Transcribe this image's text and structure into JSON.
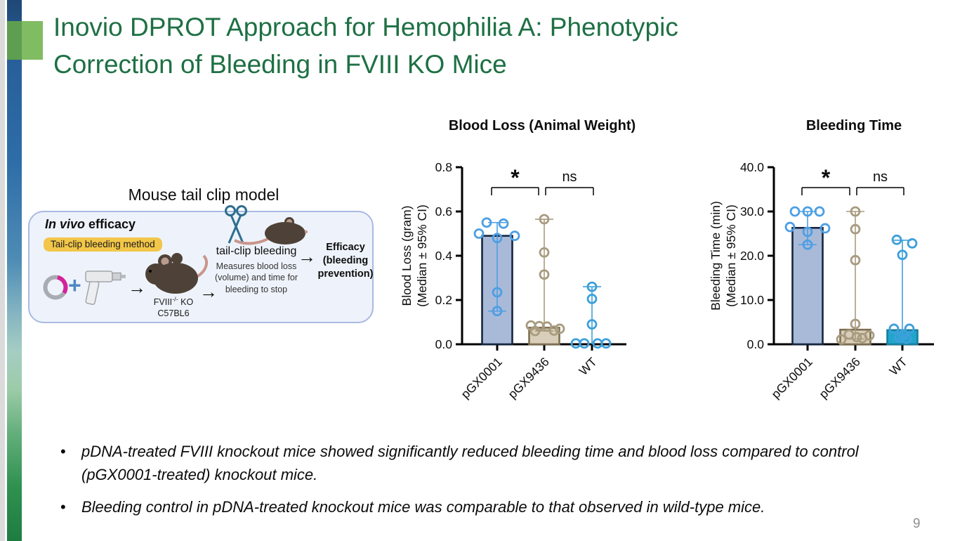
{
  "slide": {
    "title_line1": "Inovio DPROT Approach for Hemophilia A: Phenotypic",
    "title_line2": "Correction of Bleeding in FVIII KO Mice",
    "page_number": "9"
  },
  "colors": {
    "title_green": "#1E7044",
    "tag_yellow": "#F2C649",
    "box_border": "#A9B9E2",
    "box_bg": "#EEF3FB",
    "accent_blue": "#4D9FE3",
    "accent_tan": "#A89B7F",
    "accent_teal": "#21A5CB",
    "bar_blue_fill": "#A9BAD8",
    "bar_tan_fill": "#D9CEB9",
    "bar_teal_fill": "#21A5CB"
  },
  "icons": {
    "arrow": "→",
    "plus": "+"
  },
  "diagram": {
    "heading": "Mouse tail clip model",
    "invivo_italic": "In vivo",
    "invivo_rest": " efficacy",
    "method_tag": "Tail-clip bleeding method",
    "mouse_line1_base": "FVIII",
    "mouse_line1_sup": "-/-",
    "mouse_line1_suffix": " KO",
    "mouse_line2": "C57BL6",
    "tailclip_title": "tail-clip bleeding",
    "tailclip_desc": "Measures blood loss (volume) and time for bleeding to stop",
    "efficacy_line1": "Efficacy",
    "efficacy_line2": "(bleeding",
    "efficacy_line3": "prevention)"
  },
  "bullets": [
    {
      "text": "pDNA-treated FVIII knockout mice showed significantly reduced bleeding time and blood loss compared to control (pGX0001-treated) knockout mice."
    },
    {
      "text": "Bleeding control in pDNA-treated knockout mice was comparable to that observed in wild-type mice."
    }
  ],
  "chart_data": [
    {
      "type": "bar",
      "title": "Blood Loss (Animal Weight)",
      "ylabel": [
        "Blood Loss (gram)",
        "(Median ± 95% CI)"
      ],
      "ylim": [
        0,
        0.8
      ],
      "yticks": [
        "0.0",
        "0.2",
        "0.4",
        "0.6",
        "0.8"
      ],
      "categories": [
        "pGX0001",
        "pGX9436",
        "WT"
      ],
      "groups": [
        {
          "name": "pGX0001",
          "median": 0.49,
          "ci_low": 0.15,
          "ci_high": 0.55,
          "bar_fill": "#A9BAD8",
          "bar_stroke": "#16263F",
          "accent": "#4D9FE3",
          "points": [
            [
              -15,
              0.55
            ],
            [
              9,
              0.545
            ],
            [
              -26,
              0.5
            ],
            [
              25,
              0.49
            ],
            [
              0,
              0.48
            ],
            [
              0,
              0.235
            ],
            [
              0,
              0.15
            ]
          ]
        },
        {
          "name": "pGX9436",
          "median": 0.075,
          "ci_low": 0.06,
          "ci_high": 0.565,
          "bar_fill": "#D9CEB9",
          "bar_stroke": "#7D6F51",
          "accent": "#A89B7F",
          "points": [
            [
              0,
              0.565
            ],
            [
              0,
              0.415
            ],
            [
              0,
              0.315
            ],
            [
              -19,
              0.085
            ],
            [
              -7,
              0.082
            ],
            [
              4,
              0.08
            ],
            [
              14,
              0.062
            ],
            [
              -13,
              0.06
            ],
            [
              22,
              0.07
            ]
          ]
        },
        {
          "name": "WT",
          "median": 0.004,
          "ci_low": 0,
          "ci_high": 0.26,
          "bar_fill": "#21A5CB",
          "bar_stroke": "#177F9E",
          "accent": "#3DA0DB",
          "points": [
            [
              0,
              0.26
            ],
            [
              0,
              0.205
            ],
            [
              0,
              0.09
            ],
            [
              -23,
              0.004
            ],
            [
              -11,
              0.004
            ],
            [
              8,
              0.004
            ],
            [
              20,
              0.004
            ]
          ]
        }
      ],
      "annotations": [
        {
          "label": "*",
          "from": 0,
          "to": 1
        },
        {
          "label": "ns",
          "from": 1,
          "to": 2
        }
      ]
    },
    {
      "type": "bar",
      "title": "Bleeding Time",
      "ylabel": [
        "Bleeding Time (min)",
        "(Median ± 95% CI)"
      ],
      "ylim": [
        0,
        40
      ],
      "yticks": [
        "0.0",
        "10.0",
        "20.0",
        "30.0",
        "40.0"
      ],
      "categories": [
        "pGX0001",
        "pGX9436",
        "WT"
      ],
      "groups": [
        {
          "name": "pGX0001",
          "median": 26.3,
          "ci_low": 22.5,
          "ci_high": 30,
          "bar_fill": "#A9BAD8",
          "bar_stroke": "#16263F",
          "accent": "#4D9FE3",
          "points": [
            [
              -18,
              30
            ],
            [
              0,
              30
            ],
            [
              17,
              30
            ],
            [
              -25,
              26.5
            ],
            [
              25,
              26.2
            ],
            [
              0,
              25.4
            ],
            [
              0,
              22.5
            ]
          ]
        },
        {
          "name": "pGX9436",
          "median": 3.3,
          "ci_low": 1.2,
          "ci_high": 30,
          "bar_fill": "#D9CEB9",
          "bar_stroke": "#7D6F51",
          "accent": "#A89B7F",
          "points": [
            [
              0,
              30
            ],
            [
              0,
              26
            ],
            [
              0,
              19
            ],
            [
              0,
              4.6
            ],
            [
              -20,
              1.1
            ],
            [
              -9,
              2.2
            ],
            [
              2,
              1.6
            ],
            [
              10,
              1.4
            ],
            [
              20,
              2.0
            ]
          ]
        },
        {
          "name": "WT",
          "median": 3.2,
          "ci_low": 1.2,
          "ci_high": 23.5,
          "bar_fill": "#21A5CB",
          "bar_stroke": "#177F9E",
          "accent": "#3DA0DB",
          "points": [
            [
              -8,
              23.6
            ],
            [
              14,
              22.8
            ],
            [
              0,
              20.2
            ],
            [
              -12,
              3.5
            ],
            [
              10,
              3.5
            ],
            [
              -4,
              1.5
            ],
            [
              6,
              1.2
            ],
            [
              1,
              2.2
            ]
          ]
        }
      ],
      "annotations": [
        {
          "label": "*",
          "from": 0,
          "to": 1
        },
        {
          "label": "ns",
          "from": 1,
          "to": 2
        }
      ]
    }
  ]
}
